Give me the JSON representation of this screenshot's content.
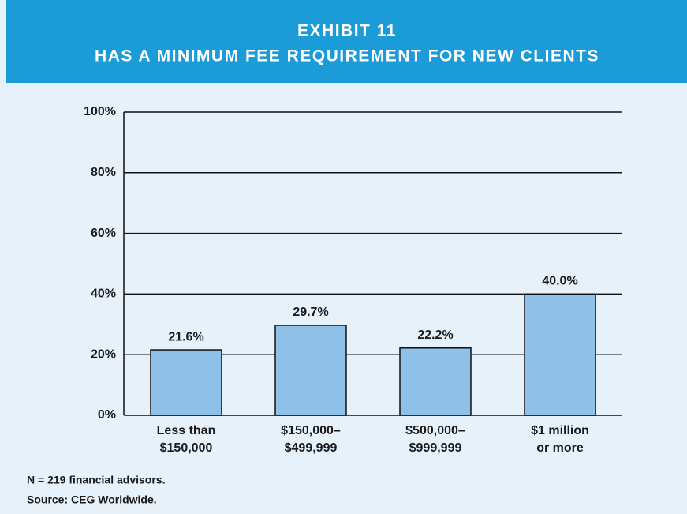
{
  "chart_data": {
    "type": "bar",
    "title": [
      "EXHIBIT 11",
      "HAS A MINIMUM FEE REQUIREMENT FOR NEW CLIENTS"
    ],
    "categories": [
      [
        "Less than",
        "$150,000"
      ],
      [
        "$150,000–",
        "$499,999"
      ],
      [
        "$500,000–",
        "$999,999"
      ],
      [
        "$1 million",
        "or more"
      ]
    ],
    "values": [
      21.6,
      29.7,
      22.2,
      40.0
    ],
    "value_labels": [
      "21.6%",
      "29.7%",
      "22.2%",
      "40.0%"
    ],
    "color": "#8fc0e8",
    "ylim": [
      0,
      100
    ],
    "yticks": [
      {
        "value": 0,
        "label": "0%"
      },
      {
        "value": 20,
        "label": "20%"
      },
      {
        "value": 40,
        "label": "40%"
      },
      {
        "value": 60,
        "label": "60%"
      },
      {
        "value": 80,
        "label": "80%"
      },
      {
        "value": 100,
        "label": "100%"
      }
    ],
    "grid": true,
    "notes": [
      "N = 219 financial advisors.",
      "Source: CEG Worldwide."
    ]
  }
}
